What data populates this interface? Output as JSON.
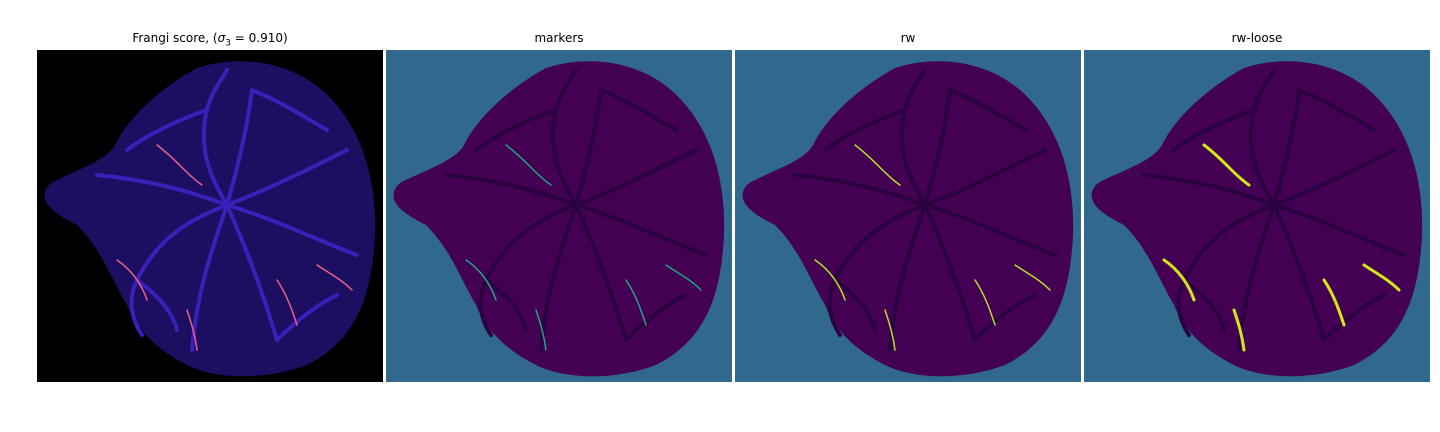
{
  "panels": [
    {
      "id": "frangi",
      "title_prefix": "Frangi score, (",
      "title_sigma": "σ",
      "title_sub": "3",
      "title_suffix": " = 0.910)",
      "background": "#000000",
      "fill": "#1c0f62",
      "vessel": "#3b1fb8",
      "highlight": "#e8608a"
    },
    {
      "id": "markers",
      "title": "markers",
      "background": "#30688e",
      "fill": "#440154",
      "vessel": "#2a0240",
      "highlight": "#21a585"
    },
    {
      "id": "rw",
      "title": "rw",
      "background": "#30688e",
      "fill": "#440154",
      "vessel": "#2a0240",
      "highlight": "#b5de2b"
    },
    {
      "id": "rw-loose",
      "title": "rw-loose",
      "background": "#30688e",
      "fill": "#440154",
      "vessel": "#2a0240",
      "highlight": "#d4e61a"
    }
  ]
}
